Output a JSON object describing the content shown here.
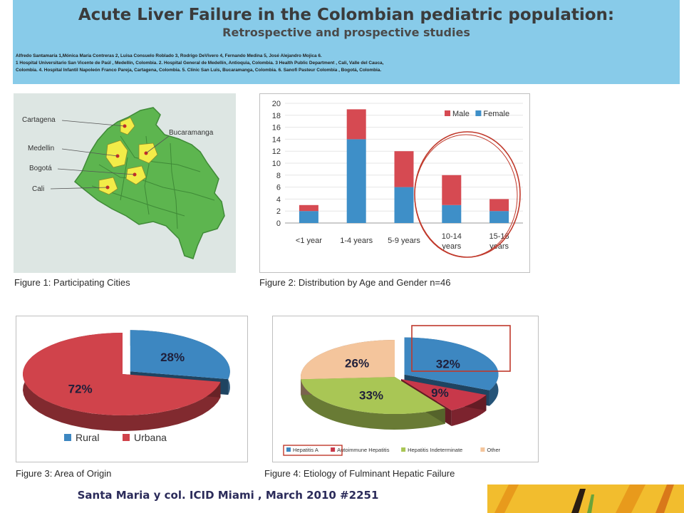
{
  "banner": {
    "title": "Acute Liver Failure in the Colombian pediatric population:",
    "subtitle": "Retrospective and prospective studies",
    "authors": [
      "Alfredo Santamaría 1,Mónica María Contreras 2, Luisa Consuelo Roblado 3, Rodrigo DeVivero 4, Fernando Medina 5, José Alejandro Mojica 6.",
      "1 Hospital Universitario San Vicente de Paúl , Medellín, Colombia. 2. Hospital General de Medellín, Antioquia, Colombia. 3 Health Public Department , Cali, Valle del Cauca,",
      "Colombia. 4. Hospital Infantil Napoleón Franco Pareja, Cartagena, Colombia. 5. Clínic San Luis, Bucaramanga, Colombia. 6. Sanofi Pasteur Colombia , Bogotá, Colombia."
    ]
  },
  "figure1": {
    "caption": "Figure 1: Participating Cities",
    "cities": [
      "Cartagena",
      "Bucaramanga",
      "Medellin",
      "Bogotá",
      "Cali"
    ],
    "colors": {
      "highlight": "#f2ec48",
      "region": "#5db54f",
      "background": "#dde6e3"
    }
  },
  "chart_data": [
    {
      "type": "bar",
      "caption": "Figure 2: Distribution by Age and Gender n=46",
      "categories": [
        "<1 year",
        "1-4 years",
        "5-9 years",
        "10-14 years",
        "15-18 years"
      ],
      "series": [
        {
          "name": "Female",
          "values": [
            2,
            14,
            6,
            3,
            2
          ],
          "color": "#3e8fc8"
        },
        {
          "name": "Male",
          "values": [
            1,
            5,
            6,
            5,
            2
          ],
          "color": "#d64a52"
        }
      ],
      "ylim": [
        0,
        20
      ],
      "yticks": [
        0,
        2,
        4,
        6,
        8,
        10,
        12,
        14,
        16,
        18,
        20
      ],
      "stacked": true,
      "legend": "top-right",
      "annotation": "red circle around 10-14 years and 15-18 years"
    },
    {
      "type": "pie",
      "caption": "Figure 3: Area of Origin",
      "labels": [
        "Rural",
        "Urbana"
      ],
      "values": [
        28,
        72
      ],
      "value_labels": [
        "28%",
        "72%"
      ],
      "colors": [
        "#3d87c1",
        "#d0434b"
      ],
      "legend": "bottom"
    },
    {
      "type": "pie",
      "caption": "Figure 4: Etiology of Fulminant Hepatic Failure",
      "labels": [
        "Hepatitis A",
        "Autoimmune Hepatitis",
        "Hepatitis Indeterminate",
        "Other"
      ],
      "values": [
        32,
        9,
        33,
        26
      ],
      "value_labels": [
        "32%",
        "9%",
        "33%",
        "26%"
      ],
      "colors": [
        "#3d87c1",
        "#c8384a",
        "#a9c655",
        "#f4c59c"
      ],
      "legend": "bottom",
      "annotation": "red boxes around 32% slice and Hepatitis A legend entry"
    }
  ],
  "footer": {
    "text": "Santa Maria y col. ICID Miami , March 2010 #2251"
  }
}
